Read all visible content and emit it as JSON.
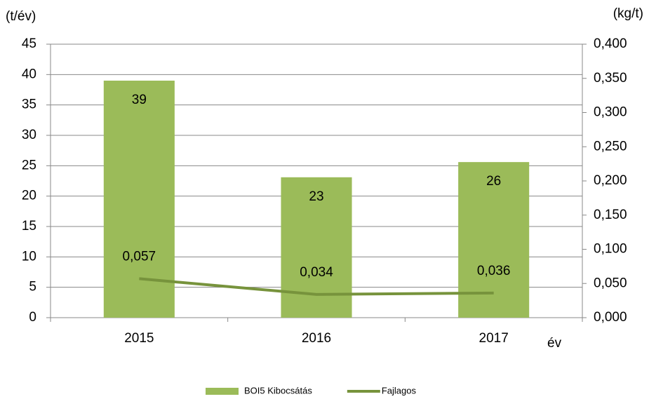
{
  "chart_data": {
    "type": "bar",
    "categories": [
      "2015",
      "2016",
      "2017"
    ],
    "series": [
      {
        "name": "BOI5 Kibocsátás",
        "color": "#9bbb59",
        "values": [
          39,
          23.1,
          25.6
        ],
        "value_labels": [
          "39",
          "23",
          "26"
        ]
      },
      {
        "name": "Fajlagos",
        "type": "line",
        "axis": "y2",
        "color": "#77933c",
        "values": [
          0.057,
          0.034,
          0.036
        ],
        "value_labels": [
          "0,057",
          "0,034",
          "0,036"
        ]
      }
    ],
    "y_label": "(t/év)",
    "y2_label": "(kg/t)",
    "x_label": "év",
    "ylim": [
      0,
      45
    ],
    "yticks": [
      0,
      5,
      10,
      15,
      20,
      25,
      30,
      35,
      40,
      45
    ],
    "y2lim": [
      0,
      0.4
    ],
    "y2ticks": [
      {
        "value": 0,
        "label": "0,000"
      },
      {
        "value": 0.05,
        "label": "0,050"
      },
      {
        "value": 0.1,
        "label": "0,100"
      },
      {
        "value": 0.15,
        "label": "0,150"
      },
      {
        "value": 0.2,
        "label": "0,200"
      },
      {
        "value": 0.25,
        "label": "0,250"
      },
      {
        "value": 0.3,
        "label": "0,300"
      },
      {
        "value": 0.35,
        "label": "0,350"
      },
      {
        "value": 0.4,
        "label": "0,400"
      }
    ],
    "grid": true,
    "legend": "bottom"
  }
}
